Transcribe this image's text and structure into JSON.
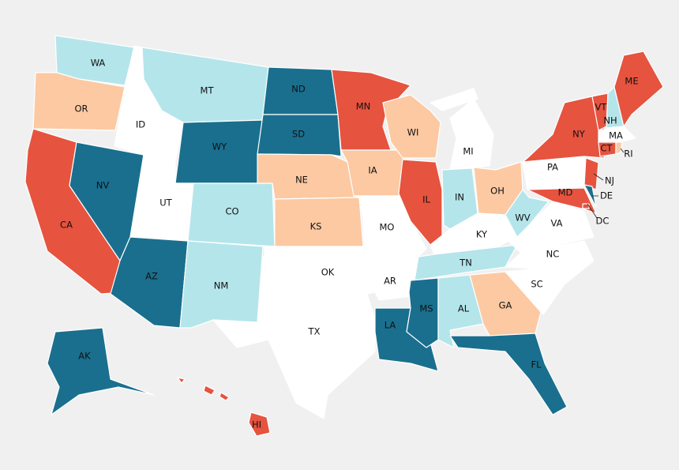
{
  "states": [
    {
      "label": "WA",
      "color": "#b4e5eb"
    },
    {
      "label": "OR",
      "color": "#fcc9a2"
    },
    {
      "label": "CA",
      "color": "#e6533f"
    },
    {
      "label": "NV",
      "color": "#1a6f8e"
    },
    {
      "label": "ID",
      "color": "#ffffff"
    },
    {
      "label": "MT",
      "color": "#b4e5eb"
    },
    {
      "label": "WY",
      "color": "#1a6f8e"
    },
    {
      "label": "UT",
      "color": "#ffffff"
    },
    {
      "label": "AZ",
      "color": "#1a6f8e"
    },
    {
      "label": "CO",
      "color": "#b4e5eb"
    },
    {
      "label": "NM",
      "color": "#b4e5eb"
    },
    {
      "label": "ND",
      "color": "#1a6f8e"
    },
    {
      "label": "SD",
      "color": "#1a6f8e"
    },
    {
      "label": "NE",
      "color": "#fcc9a2"
    },
    {
      "label": "KS",
      "color": "#fcc9a2"
    },
    {
      "label": "OK",
      "color": "#ffffff"
    },
    {
      "label": "TX",
      "color": "#ffffff"
    },
    {
      "label": "MN",
      "color": "#e6533f"
    },
    {
      "label": "IA",
      "color": "#fcc9a2"
    },
    {
      "label": "MO",
      "color": "#ffffff"
    },
    {
      "label": "AR",
      "color": "#ffffff"
    },
    {
      "label": "LA",
      "color": "#1a6f8e"
    },
    {
      "label": "WI",
      "color": "#fcc9a2"
    },
    {
      "label": "IL",
      "color": "#e6533f"
    },
    {
      "label": "MI",
      "color": "#ffffff"
    },
    {
      "label": "IN",
      "color": "#b4e5eb"
    },
    {
      "label": "OH",
      "color": "#fcc9a2"
    },
    {
      "label": "KY",
      "color": "#ffffff"
    },
    {
      "label": "TN",
      "color": "#b4e5eb"
    },
    {
      "label": "MS",
      "color": "#1a6f8e"
    },
    {
      "label": "AL",
      "color": "#b4e5eb"
    },
    {
      "label": "GA",
      "color": "#fcc9a2"
    },
    {
      "label": "FL",
      "color": "#1a6f8e"
    },
    {
      "label": "SC",
      "color": "#ffffff"
    },
    {
      "label": "NC",
      "color": "#ffffff"
    },
    {
      "label": "VA",
      "color": "#ffffff"
    },
    {
      "label": "WV",
      "color": "#b4e5eb"
    },
    {
      "label": "PA",
      "color": "#ffffff"
    },
    {
      "label": "NY",
      "color": "#e6533f"
    },
    {
      "label": "NJ",
      "color": "#e6533f"
    },
    {
      "label": "MD",
      "color": "#e6533f"
    },
    {
      "label": "DE",
      "color": "#1a6f8e"
    },
    {
      "label": "DC",
      "color": "#e6533f"
    },
    {
      "label": "VT",
      "color": "#e6533f"
    },
    {
      "label": "NH",
      "color": "#b4e5eb"
    },
    {
      "label": "ME",
      "color": "#e6533f"
    },
    {
      "label": "MA",
      "color": "#ffffff"
    },
    {
      "label": "CT",
      "color": "#e6533f"
    },
    {
      "label": "RI",
      "color": "#fcc9a2"
    },
    {
      "label": "AK",
      "color": "#1a6f8e"
    },
    {
      "label": "HI",
      "color": "#e6533f"
    }
  ]
}
